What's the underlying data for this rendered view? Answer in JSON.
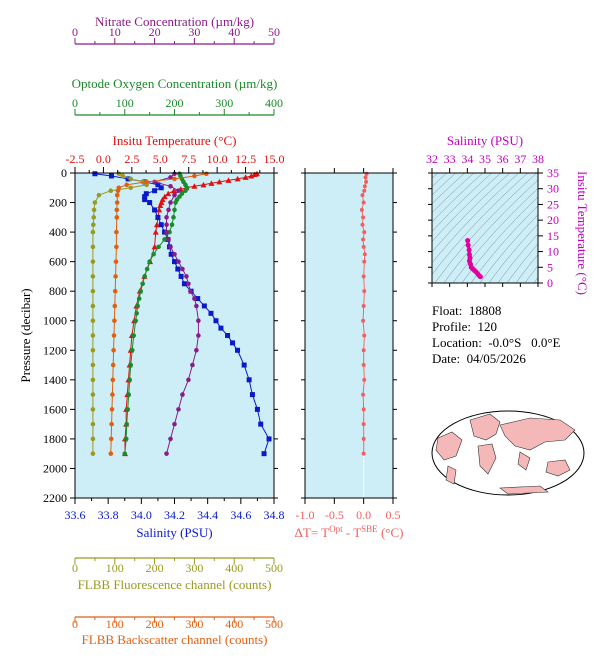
{
  "colors": {
    "nitrate": "#8b1a8b",
    "oxygen": "#1a8a2a",
    "temperature": "#e01010",
    "salinity": "#0a1ac8",
    "fluorescence": "#9a9a20",
    "backscatter": "#e06010",
    "delta_t": "#f06060",
    "ts_curve": "#e000a0",
    "ts_axis": "#c000c0",
    "plot_bg": "#cdeef6",
    "land": "#f4b8b8"
  },
  "map": {
    "title": "world-map"
  },
  "info": {
    "float_label": "Float:",
    "float_value": "18808",
    "profile_label": "Profile:",
    "profile_value": "120",
    "location_label": "Location:",
    "location_value": "-0.0°S   0.0°E",
    "date_label": "Date:",
    "date_value": "04/05/2026"
  },
  "chart_data": [
    {
      "type": "line",
      "ylabel": "Pressure (decibar)",
      "ylim": [
        2200,
        0
      ],
      "yticks": [
        0,
        200,
        400,
        600,
        800,
        1000,
        1200,
        1400,
        1600,
        1800,
        2000,
        2200
      ],
      "axes": {
        "nitrate": {
          "label": "Nitrate Concentration (µm/kg)",
          "range": [
            0,
            50
          ],
          "ticks": [
            0,
            10,
            20,
            30,
            40,
            50
          ]
        },
        "oxygen": {
          "label": "Optode Oxygen Concentration (µm/kg)",
          "range": [
            0,
            400
          ],
          "ticks": [
            0,
            100,
            200,
            300,
            400
          ]
        },
        "temperature": {
          "label": "Insitu Temperature (°C)",
          "range": [
            -2.5,
            15.0
          ],
          "ticks": [
            "-2.5",
            "0.0",
            "2.5",
            "5.0",
            "7.5",
            "10.0",
            "12.5",
            "15.0"
          ]
        },
        "salinity": {
          "label": "Salinity (PSU)",
          "range": [
            33.6,
            34.8
          ],
          "ticks": [
            "33.6",
            "33.8",
            "34.0",
            "34.2",
            "34.4",
            "34.6",
            "34.8"
          ]
        },
        "fluorescence": {
          "label": "FLBB Fluorescence channel (counts)",
          "range": [
            0,
            500
          ],
          "ticks": [
            0,
            100,
            200,
            300,
            400,
            500
          ]
        },
        "backscatter": {
          "label": "FLBB Backscatter channel (counts)",
          "range": [
            0,
            500
          ],
          "ticks": [
            0,
            100,
            200,
            300,
            400,
            500
          ]
        }
      },
      "series": [
        {
          "key": "temperature",
          "pressure": [
            5,
            10,
            20,
            30,
            40,
            50,
            60,
            70,
            80,
            90,
            100,
            110,
            120,
            140,
            160,
            180,
            200,
            220,
            250,
            300,
            350,
            400,
            500,
            600,
            700,
            800,
            900,
            1000,
            1100,
            1200,
            1300,
            1400,
            1500,
            1600,
            1700,
            1800,
            1900
          ],
          "values": [
            13.5,
            13.3,
            13.0,
            12.5,
            11.8,
            11.0,
            10.2,
            9.5,
            8.8,
            8.0,
            7.3,
            6.8,
            6.2,
            5.7,
            5.4,
            5.2,
            5.1,
            5.0,
            4.9,
            4.8,
            4.7,
            4.6,
            4.5,
            4.1,
            3.6,
            3.2,
            2.9,
            2.7,
            2.5,
            2.4,
            2.3,
            2.2,
            2.1,
            2.0,
            2.0,
            1.9,
            1.9
          ]
        },
        {
          "key": "salinity",
          "pressure": [
            5,
            20,
            40,
            60,
            80,
            100,
            120,
            140,
            160,
            180,
            200,
            250,
            300,
            350,
            400,
            450,
            500,
            550,
            600,
            650,
            700,
            750,
            800,
            850,
            900,
            950,
            1000,
            1050,
            1100,
            1150,
            1200,
            1300,
            1400,
            1500,
            1600,
            1700,
            1800,
            1900
          ],
          "values": [
            33.72,
            33.82,
            33.92,
            34.02,
            34.1,
            34.12,
            34.08,
            34.03,
            34.02,
            34.02,
            34.05,
            34.08,
            34.1,
            34.12,
            34.14,
            34.16,
            34.17,
            34.18,
            34.2,
            34.22,
            34.24,
            34.26,
            34.3,
            34.34,
            34.38,
            34.42,
            34.45,
            34.48,
            34.52,
            34.55,
            34.58,
            34.62,
            34.65,
            34.67,
            34.7,
            34.72,
            34.77,
            34.74
          ]
        },
        {
          "key": "oxygen",
          "pressure": [
            5,
            20,
            40,
            60,
            80,
            100,
            120,
            140,
            160,
            180,
            200,
            250,
            300,
            350,
            400,
            450,
            500,
            550,
            600,
            650,
            700,
            750,
            800,
            850,
            900,
            950,
            1000,
            1100,
            1200,
            1300,
            1400,
            1500,
            1600,
            1700,
            1800,
            1900
          ],
          "values": [
            210,
            212,
            215,
            218,
            222,
            225,
            222,
            215,
            210,
            205,
            202,
            200,
            198,
            195,
            190,
            180,
            168,
            158,
            150,
            145,
            140,
            136,
            132,
            129,
            126,
            124,
            122,
            118,
            115,
            112,
            110,
            108,
            106,
            104,
            103,
            100
          ]
        },
        {
          "key": "nitrate",
          "pressure": [
            5,
            30,
            60,
            90,
            120,
            150,
            200,
            250,
            300,
            350,
            400,
            450,
            500,
            550,
            600,
            650,
            700,
            750,
            800,
            850,
            900,
            1000,
            1100,
            1200,
            1300,
            1400,
            1500,
            1600,
            1700,
            1800,
            1900
          ],
          "values": [
            25,
            24,
            20,
            24,
            26,
            25,
            24,
            23.5,
            23,
            23,
            23,
            23.5,
            24,
            25,
            26,
            27,
            28,
            28.5,
            29,
            30,
            30.5,
            31,
            31,
            30.5,
            29.5,
            28.5,
            27,
            26,
            25,
            24,
            23
          ]
        },
        {
          "key": "fluorescence",
          "pressure": [
            5,
            20,
            40,
            60,
            80,
            100,
            120,
            150,
            200,
            250,
            300,
            350,
            400,
            500,
            600,
            700,
            800,
            900,
            1000,
            1100,
            1200,
            1300,
            1400,
            1500,
            1600,
            1700,
            1800,
            1900
          ],
          "values": [
            110,
            120,
            140,
            170,
            180,
            140,
            90,
            60,
            50,
            48,
            47,
            46,
            45,
            45,
            45,
            45,
            45,
            45,
            45,
            45,
            45,
            45,
            45,
            45,
            45,
            45,
            45,
            45
          ]
        },
        {
          "key": "backscatter",
          "pressure": [
            5,
            20,
            40,
            60,
            80,
            100,
            120,
            150,
            200,
            250,
            300,
            400,
            500,
            600,
            700,
            800,
            900,
            1000,
            1100,
            1200,
            1300,
            1400,
            1500,
            1600,
            1700,
            1800,
            1900
          ],
          "values": [
            330,
            300,
            250,
            180,
            130,
            110,
            108,
            106,
            106,
            105,
            105,
            104,
            104,
            103,
            102,
            101,
            100,
            99,
            98,
            97,
            96,
            95,
            94,
            93,
            92,
            91,
            90
          ]
        }
      ]
    },
    {
      "type": "line",
      "xlabel": "ΔT= T",
      "xlabel_sup1": "Opt",
      "xlabel_mid": " - T",
      "xlabel_sup2": "SBE",
      "xlabel_tail": " (°C)",
      "xlim": [
        -1.0,
        0.5
      ],
      "xticks": [
        "-1.0",
        "-0.5",
        "0.0",
        "0.5"
      ],
      "ylim": [
        2200,
        0
      ],
      "series": [
        {
          "key": "delta_t",
          "pressure": [
            5,
            30,
            60,
            90,
            120,
            150,
            200,
            250,
            300,
            350,
            400,
            450,
            500,
            550,
            600,
            700,
            800,
            900,
            1000,
            1100,
            1200,
            1300,
            1400,
            1500,
            1600,
            1700,
            1800,
            1900
          ],
          "values": [
            0.05,
            0.03,
            0.04,
            0.02,
            0.01,
            -0.02,
            0.0,
            -0.03,
            -0.01,
            -0.02,
            0.01,
            -0.01,
            0.0,
            0.02,
            0.01,
            0.0,
            0.01,
            0.0,
            -0.01,
            0.01,
            0.0,
            0.0,
            0.01,
            -0.01,
            0.0,
            0.0,
            0.0,
            0.0
          ]
        }
      ]
    },
    {
      "type": "line",
      "title": "Salinity (PSU)",
      "ylabel": "Insitu Temperature (°C)",
      "xlim": [
        32,
        38
      ],
      "ylim": [
        0,
        35
      ],
      "xticks": [
        32,
        33,
        34,
        35,
        36,
        37,
        38
      ],
      "yticks": [
        0,
        5,
        10,
        15,
        20,
        25,
        30,
        35
      ],
      "series": [
        {
          "key": "ts_curve",
          "x": [
            34.02,
            34.05,
            34.1,
            34.12,
            34.15,
            34.12,
            34.18,
            34.22,
            34.3,
            34.4,
            34.5,
            34.6,
            34.7,
            34.74
          ],
          "y": [
            13.5,
            12.0,
            10.5,
            9.0,
            8.0,
            7.0,
            6.0,
            5.0,
            4.5,
            4.0,
            3.5,
            2.8,
            2.2,
            2.0
          ]
        }
      ]
    }
  ]
}
